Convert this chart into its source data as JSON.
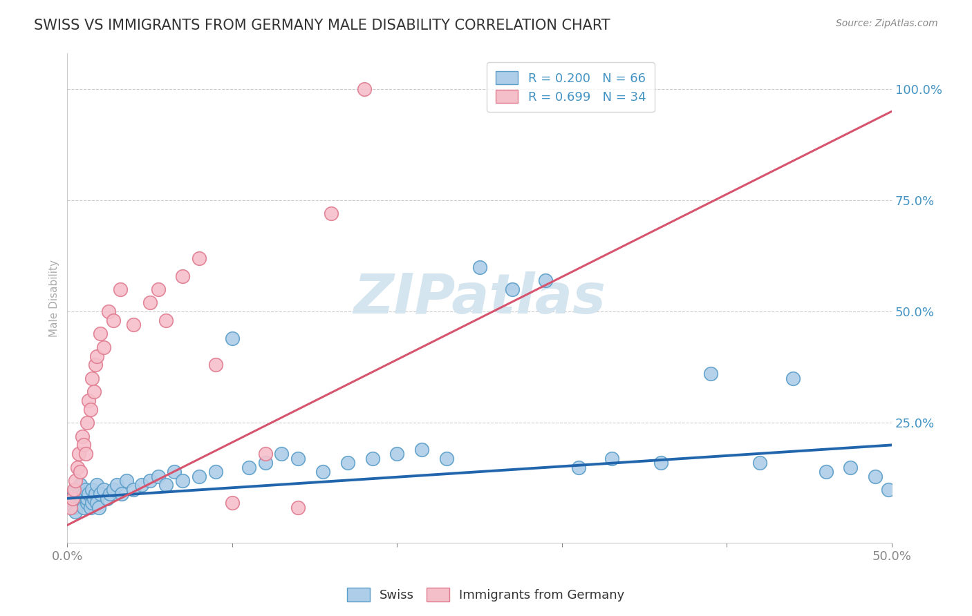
{
  "title": "SWISS VS IMMIGRANTS FROM GERMANY MALE DISABILITY CORRELATION CHART",
  "source": "Source: ZipAtlas.com",
  "ylabel": "Male Disability",
  "xlim": [
    0.0,
    0.5
  ],
  "ylim": [
    0.0,
    1.05
  ],
  "ytick_labels": [
    "25.0%",
    "50.0%",
    "75.0%",
    "100.0%"
  ],
  "ytick_vals": [
    0.25,
    0.5,
    0.75,
    1.0
  ],
  "swiss_color": "#aecde8",
  "swiss_edge_color": "#5b9ec9",
  "germany_color": "#f5bfca",
  "germany_edge_color": "#e07b90",
  "swiss_line_color": "#2166ac",
  "germany_line_color": "#d6546e",
  "swiss_R": 0.2,
  "swiss_N": 66,
  "germany_R": 0.699,
  "germany_N": 34,
  "background_color": "#ffffff",
  "grid_color": "#cccccc",
  "title_color": "#333333",
  "tick_color": "#4393c3",
  "watermark_color": "#d5e5f0",
  "legend_label_color": "#4393c3",
  "swiss_line_x0": 0.0,
  "swiss_line_y0": 0.08,
  "swiss_line_x1": 0.5,
  "swiss_line_y1": 0.2,
  "germany_line_x0": 0.0,
  "germany_line_y0": 0.02,
  "germany_line_x1": 0.5,
  "germany_line_y1": 0.95,
  "swiss_scatter_x": [
    0.002,
    0.003,
    0.004,
    0.004,
    0.005,
    0.005,
    0.006,
    0.007,
    0.008,
    0.008,
    0.009,
    0.01,
    0.01,
    0.011,
    0.012,
    0.012,
    0.013,
    0.014,
    0.015,
    0.015,
    0.016,
    0.017,
    0.018,
    0.018,
    0.019,
    0.02,
    0.022,
    0.024,
    0.026,
    0.028,
    0.03,
    0.033,
    0.036,
    0.04,
    0.045,
    0.05,
    0.055,
    0.06,
    0.065,
    0.07,
    0.08,
    0.09,
    0.1,
    0.11,
    0.12,
    0.13,
    0.14,
    0.155,
    0.17,
    0.185,
    0.2,
    0.215,
    0.23,
    0.25,
    0.27,
    0.29,
    0.31,
    0.33,
    0.36,
    0.39,
    0.42,
    0.44,
    0.46,
    0.475,
    0.49,
    0.498
  ],
  "swiss_scatter_y": [
    0.08,
    0.07,
    0.09,
    0.06,
    0.1,
    0.05,
    0.08,
    0.09,
    0.07,
    0.11,
    0.08,
    0.09,
    0.06,
    0.1,
    0.07,
    0.08,
    0.09,
    0.06,
    0.1,
    0.07,
    0.08,
    0.09,
    0.07,
    0.11,
    0.06,
    0.09,
    0.1,
    0.08,
    0.09,
    0.1,
    0.11,
    0.09,
    0.12,
    0.1,
    0.11,
    0.12,
    0.13,
    0.11,
    0.14,
    0.12,
    0.13,
    0.14,
    0.44,
    0.15,
    0.16,
    0.18,
    0.17,
    0.14,
    0.16,
    0.17,
    0.18,
    0.19,
    0.17,
    0.6,
    0.55,
    0.57,
    0.15,
    0.17,
    0.16,
    0.36,
    0.16,
    0.35,
    0.14,
    0.15,
    0.13,
    0.1
  ],
  "germany_scatter_x": [
    0.002,
    0.003,
    0.004,
    0.005,
    0.006,
    0.007,
    0.008,
    0.009,
    0.01,
    0.011,
    0.012,
    0.013,
    0.014,
    0.015,
    0.016,
    0.017,
    0.018,
    0.02,
    0.022,
    0.025,
    0.028,
    0.032,
    0.04,
    0.05,
    0.055,
    0.06,
    0.07,
    0.08,
    0.09,
    0.1,
    0.12,
    0.14,
    0.16,
    0.18
  ],
  "germany_scatter_y": [
    0.06,
    0.08,
    0.1,
    0.12,
    0.15,
    0.18,
    0.14,
    0.22,
    0.2,
    0.18,
    0.25,
    0.3,
    0.28,
    0.35,
    0.32,
    0.38,
    0.4,
    0.45,
    0.42,
    0.5,
    0.48,
    0.55,
    0.47,
    0.52,
    0.55,
    0.48,
    0.58,
    0.62,
    0.38,
    0.07,
    0.18,
    0.06,
    0.72,
    1.0
  ]
}
